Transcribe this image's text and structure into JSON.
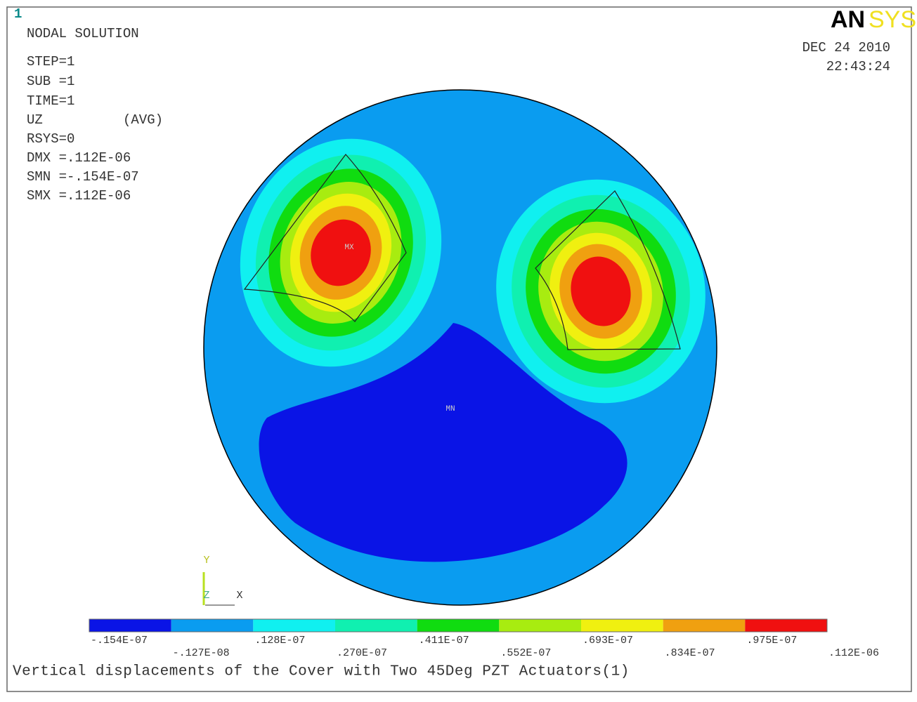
{
  "window_number": "1",
  "header": {
    "title": "NODAL SOLUTION",
    "info": [
      "STEP=1",
      "SUB =1",
      "TIME=1",
      "UZ",
      "RSYS=0",
      "DMX =.112E-06",
      "SMN =-.154E-07",
      "SMX =.112E-06"
    ],
    "averaging": "(AVG)",
    "date": "DEC 24 2010",
    "time": "22:43:24",
    "logo": [
      "AN",
      "SYS"
    ]
  },
  "plot": {
    "max_label": "MX",
    "min_label": "MN",
    "triad": {
      "y": "Y",
      "z": "Z",
      "x": "X"
    }
  },
  "legend": {
    "colors": [
      "#0a14e6",
      "#0a9cf0",
      "#10f0f0",
      "#10f0b0",
      "#10dc10",
      "#a8ec10",
      "#f0f010",
      "#f0a010",
      "#f01010"
    ],
    "labels": [
      "-.154E-07",
      "-.127E-08",
      ".128E-07",
      ".270E-07",
      ".411E-07",
      ".552E-07",
      ".693E-07",
      ".834E-07",
      ".975E-07",
      ".112E-06"
    ]
  },
  "caption": "Vertical displacements of the Cover with Two 45Deg PZT Actuators(1)"
}
